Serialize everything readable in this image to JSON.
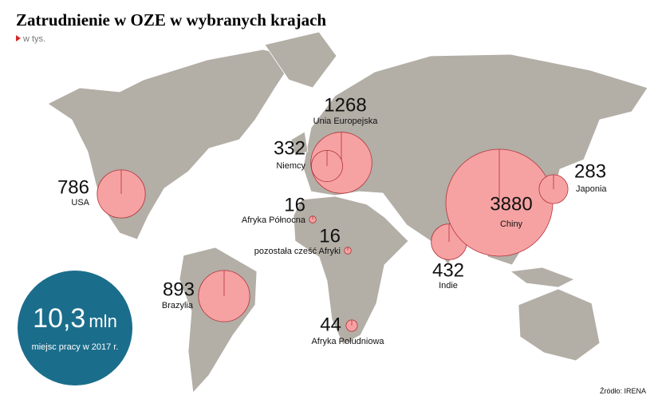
{
  "title": "Zatrudnienie w OZE w wybranych krajach",
  "subtitle": "w tys.",
  "regions": [
    {
      "name": "USA",
      "value": 786
    },
    {
      "name": "Unia Europejska",
      "value": 1268
    },
    {
      "name": "Niemcy",
      "value": 332
    },
    {
      "name": "Afryka Północna",
      "value": 16
    },
    {
      "name": "pozostała cześć Afryki",
      "value": 16
    },
    {
      "name": "Afryka Południowa",
      "value": 44
    },
    {
      "name": "Brazylia",
      "value": 893
    },
    {
      "name": "Indie",
      "value": 432
    },
    {
      "name": "Chiny",
      "value": 3880
    },
    {
      "name": "Japonia",
      "value": 283
    }
  ],
  "total": {
    "number": "10,3",
    "unit": "mln",
    "caption": "miejsc pracy w 2017 r."
  },
  "source": "Źródło: IRENA"
}
